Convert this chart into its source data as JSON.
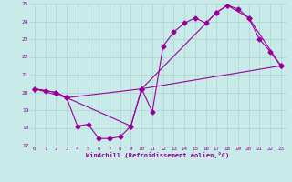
{
  "xlabel": "Windchill (Refroidissement éolien,°C)",
  "bg_color": "#c8eae8",
  "line_color": "#990099",
  "series1_y": [
    20.2,
    20.1,
    20.0,
    19.7,
    18.1,
    18.2,
    17.4,
    17.4,
    17.5,
    18.1,
    20.2,
    18.9,
    22.6,
    23.4,
    23.9,
    24.2,
    23.9,
    24.5,
    24.9,
    24.7,
    24.2,
    23.0,
    22.3,
    21.5
  ],
  "series2_y": [
    20.2,
    20.0,
    19.7,
    20.2,
    24.5,
    24.9,
    24.2,
    21.5
  ],
  "series2_x": [
    0,
    2,
    3,
    10,
    17,
    18,
    20,
    23
  ],
  "series3_y": [
    20.2,
    19.7,
    18.1,
    20.2,
    21.5
  ],
  "series3_x": [
    0,
    3,
    9,
    10,
    23
  ],
  "ylim": [
    17,
    25
  ],
  "xlim": [
    -0.5,
    23.5
  ],
  "yticks": [
    17,
    18,
    19,
    20,
    21,
    22,
    23,
    24,
    25
  ],
  "xticks": [
    0,
    1,
    2,
    3,
    4,
    5,
    6,
    7,
    8,
    9,
    10,
    11,
    12,
    13,
    14,
    15,
    16,
    17,
    18,
    19,
    20,
    21,
    22,
    23
  ],
  "grid_color": "#aad4d0",
  "tick_color": "#880088",
  "xlabel_color": "#880088"
}
